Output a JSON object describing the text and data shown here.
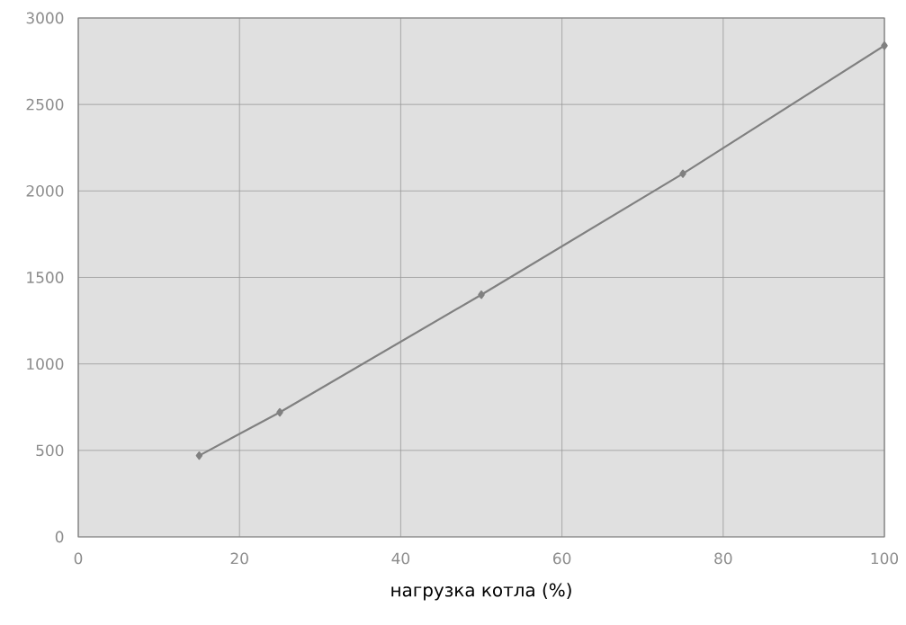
{
  "chart_data": {
    "type": "line",
    "xlabel": "нагрузка котла (%)",
    "x": [
      15,
      25,
      50,
      75,
      100
    ],
    "series": [
      {
        "color": "#808080",
        "values": [
          470,
          720,
          1400,
          2100,
          2840
        ]
      }
    ],
    "xlim": [
      0,
      100
    ],
    "xticks": [
      0,
      20,
      40,
      60,
      80,
      100
    ],
    "ylim": [
      0,
      3000
    ],
    "yticks": [
      0,
      500,
      1000,
      1500,
      2000,
      2500,
      3000
    ],
    "grid": true,
    "marker": "diamond",
    "line_style": "solid"
  }
}
